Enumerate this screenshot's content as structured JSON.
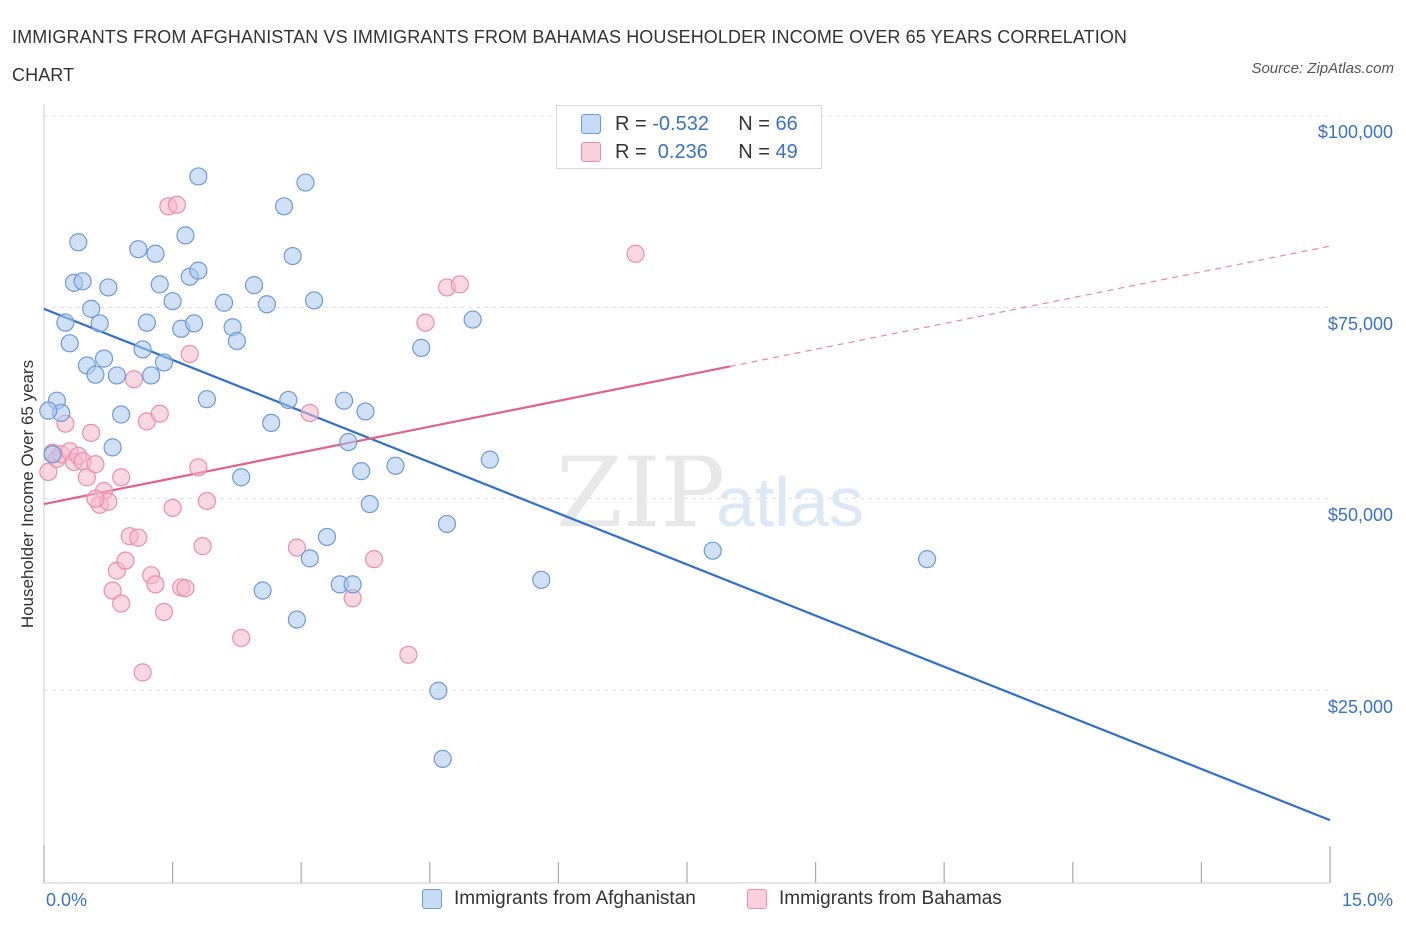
{
  "title": "IMMIGRANTS FROM AFGHANISTAN VS IMMIGRANTS FROM BAHAMAS HOUSEHOLDER INCOME OVER 65 YEARS CORRELATION CHART",
  "source": "Source: ZipAtlas.com",
  "watermark": {
    "zip": "ZIP",
    "atlas": "atlas"
  },
  "legend_top": {
    "rows": [
      {
        "r_label": "R =",
        "r_value": "-0.532",
        "n_label": "N =",
        "n_value": "66"
      },
      {
        "r_label": "R =",
        "r_value": " 0.236",
        "n_label": "N =",
        "n_value": "49"
      }
    ]
  },
  "legend_bottom": [
    "Immigrants from Afghanistan",
    "Immigrants from Bahamas"
  ],
  "colors": {
    "blue_fill": "#aac8f0",
    "blue_stroke": "#6e9ad8",
    "blue_line": "#2f6fd0",
    "pink_fill": "#f5b8cb",
    "pink_stroke": "#ec8eab",
    "pink_line": "#e0628a",
    "label_blue": "#3a72c8",
    "grid": "#e0e0e0"
  },
  "chart_data": {
    "type": "scatter",
    "title": "IMMIGRANTS FROM AFGHANISTAN VS IMMIGRANTS FROM BAHAMAS HOUSEHOLDER INCOME OVER 65 YEARS CORRELATION CHART",
    "xlabel": "",
    "ylabel": "Householder Income Over 65 years",
    "xlim": [
      0,
      15
    ],
    "ylim": [
      0,
      100000
    ],
    "x_ticks_labels": [
      "0.0%",
      "15.0%"
    ],
    "y_ticks": [
      25000,
      50000,
      75000,
      100000
    ],
    "y_tick_labels": [
      "$25,000",
      "$50,000",
      "$75,000",
      "$100,000"
    ],
    "grid": true,
    "legend_position": "bottom",
    "series": [
      {
        "name": "Immigrants from Afghanistan",
        "R": -0.532,
        "N": 66,
        "trend": {
          "x": [
            0,
            15
          ],
          "y": [
            74800,
            8000
          ],
          "dashed_from": null
        },
        "points": [
          [
            0.1,
            55800
          ],
          [
            0.15,
            62800
          ],
          [
            0.2,
            61200
          ],
          [
            0.25,
            73000
          ],
          [
            0.3,
            70300
          ],
          [
            0.35,
            78200
          ],
          [
            0.4,
            83500
          ],
          [
            0.45,
            78400
          ],
          [
            0.5,
            67400
          ],
          [
            0.55,
            74800
          ],
          [
            0.6,
            66200
          ],
          [
            0.65,
            72900
          ],
          [
            0.7,
            68300
          ],
          [
            0.75,
            77600
          ],
          [
            0.8,
            56700
          ],
          [
            0.85,
            66100
          ],
          [
            0.9,
            61000
          ],
          [
            1.1,
            82600
          ],
          [
            1.15,
            69500
          ],
          [
            1.2,
            73000
          ],
          [
            1.25,
            66100
          ],
          [
            1.3,
            82000
          ],
          [
            1.35,
            78000
          ],
          [
            1.4,
            67800
          ],
          [
            1.5,
            75800
          ],
          [
            1.6,
            72200
          ],
          [
            1.65,
            84400
          ],
          [
            1.7,
            79000
          ],
          [
            1.75,
            72900
          ],
          [
            1.8,
            79800
          ],
          [
            1.8,
            92100
          ],
          [
            1.9,
            63000
          ],
          [
            2.1,
            75600
          ],
          [
            2.2,
            72400
          ],
          [
            2.25,
            70600
          ],
          [
            2.3,
            52800
          ],
          [
            2.45,
            77900
          ],
          [
            2.55,
            38000
          ],
          [
            2.6,
            75400
          ],
          [
            2.65,
            59900
          ],
          [
            2.8,
            88200
          ],
          [
            2.85,
            62900
          ],
          [
            2.9,
            81700
          ],
          [
            2.95,
            34200
          ],
          [
            3.05,
            91300
          ],
          [
            3.1,
            42200
          ],
          [
            3.15,
            75900
          ],
          [
            3.3,
            45000
          ],
          [
            3.45,
            38800
          ],
          [
            3.5,
            62800
          ],
          [
            3.55,
            57400
          ],
          [
            3.6,
            38800
          ],
          [
            3.7,
            53600
          ],
          [
            3.75,
            61400
          ],
          [
            3.8,
            49300
          ],
          [
            4.1,
            54300
          ],
          [
            4.4,
            69700
          ],
          [
            4.6,
            24900
          ],
          [
            4.65,
            16000
          ],
          [
            4.7,
            46700
          ],
          [
            5.0,
            73400
          ],
          [
            5.2,
            55100
          ],
          [
            5.8,
            39400
          ],
          [
            7.8,
            43200
          ],
          [
            10.3,
            42100
          ],
          [
            0.05,
            61500
          ]
        ]
      },
      {
        "name": "Immigrants from Bahamas",
        "R": 0.236,
        "N": 49,
        "trend": {
          "x": [
            0,
            15
          ],
          "y": [
            49300,
            83000
          ],
          "dashed_from": 8.0
        },
        "points": [
          [
            0.05,
            53500
          ],
          [
            0.1,
            56000
          ],
          [
            0.15,
            55200
          ],
          [
            0.2,
            55800
          ],
          [
            0.25,
            59800
          ],
          [
            0.3,
            56200
          ],
          [
            0.35,
            54800
          ],
          [
            0.4,
            55600
          ],
          [
            0.45,
            54900
          ],
          [
            0.5,
            52800
          ],
          [
            0.55,
            58600
          ],
          [
            0.6,
            54500
          ],
          [
            0.65,
            49200
          ],
          [
            0.7,
            51000
          ],
          [
            0.75,
            49600
          ],
          [
            0.8,
            38000
          ],
          [
            0.85,
            40600
          ],
          [
            0.9,
            36300
          ],
          [
            0.95,
            41900
          ],
          [
            1.0,
            45100
          ],
          [
            1.05,
            65600
          ],
          [
            1.1,
            44900
          ],
          [
            1.15,
            27300
          ],
          [
            1.2,
            60100
          ],
          [
            1.25,
            40000
          ],
          [
            1.3,
            38800
          ],
          [
            1.35,
            61100
          ],
          [
            1.4,
            35200
          ],
          [
            1.45,
            88200
          ],
          [
            1.5,
            48800
          ],
          [
            1.55,
            88400
          ],
          [
            1.6,
            38400
          ],
          [
            1.65,
            38300
          ],
          [
            1.7,
            68900
          ],
          [
            1.8,
            54100
          ],
          [
            1.85,
            43800
          ],
          [
            1.9,
            49700
          ],
          [
            2.3,
            31800
          ],
          [
            2.95,
            43600
          ],
          [
            3.1,
            61200
          ],
          [
            3.6,
            37000
          ],
          [
            3.85,
            42100
          ],
          [
            4.25,
            29600
          ],
          [
            4.45,
            73000
          ],
          [
            4.7,
            77600
          ],
          [
            4.85,
            78000
          ],
          [
            6.9,
            82000
          ],
          [
            0.6,
            50000
          ],
          [
            0.9,
            52800
          ]
        ]
      }
    ]
  }
}
